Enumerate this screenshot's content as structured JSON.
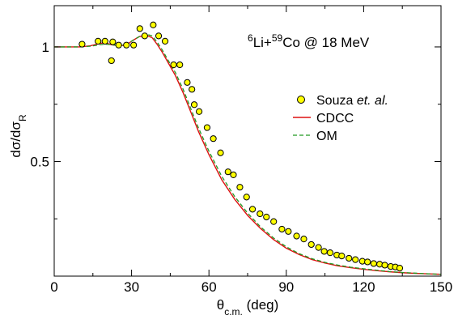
{
  "chart_data": {
    "type": "line",
    "title": "",
    "annotation": {
      "parts": [
        {
          "text": "6",
          "sup": true
        },
        {
          "text": "Li+",
          "sup": false
        },
        {
          "text": "59",
          "sup": true
        },
        {
          "text": "Co @ 18 MeV",
          "sup": false
        }
      ]
    },
    "xlabel": {
      "main": "θ",
      "sub": "c.m.",
      "rest": " (deg)"
    },
    "ylabel": {
      "main": "dσ/dσ",
      "sub": "R"
    },
    "xlim": [
      0,
      150
    ],
    "ylim": [
      0,
      1.18
    ],
    "xticks": [
      {
        "value": 0,
        "label": "0"
      },
      {
        "value": 30,
        "label": "30"
      },
      {
        "value": 60,
        "label": "60"
      },
      {
        "value": 90,
        "label": "90"
      },
      {
        "value": 120,
        "label": "120"
      },
      {
        "value": 150,
        "label": "150"
      }
    ],
    "yticks": [
      {
        "value": 0.5,
        "label": "0.5"
      },
      {
        "value": 1,
        "label": "1"
      }
    ],
    "grid": false,
    "legend_position": "right",
    "colors": {
      "data": "#ffff00",
      "cdcc": "#dd1111",
      "om": "#229922"
    },
    "series": [
      {
        "name": "Souza et. al.",
        "name_parts": [
          {
            "text": "Souza ",
            "italic": false
          },
          {
            "text": "et. al.",
            "italic": true
          }
        ],
        "kind": "points",
        "x": [
          10.8,
          17.0,
          19.7,
          22.2,
          22.7,
          25.0,
          28.0,
          30.8,
          33.2,
          35.1,
          38.4,
          40.5,
          43.0,
          46.3,
          48.7,
          51.6,
          53.4,
          54.3,
          56.2,
          59.3,
          61.7,
          64.5,
          67.4,
          69.5,
          72.0,
          74.6,
          76.9,
          79.8,
          82.3,
          85.1,
          88.3,
          90.8,
          94.0,
          96.8,
          99.7,
          102.5,
          104.7,
          107.0,
          109.6,
          111.5,
          114.3,
          116.8,
          119.5,
          121.5,
          123.9,
          126.2,
          128.2,
          130.5,
          132.3,
          134.0
        ],
        "y": [
          1.012,
          1.025,
          1.025,
          0.94,
          1.022,
          1.008,
          1.008,
          1.008,
          1.08,
          1.048,
          1.096,
          1.048,
          1.025,
          0.922,
          0.922,
          0.845,
          0.815,
          0.748,
          0.718,
          0.648,
          0.6,
          0.538,
          0.455,
          0.442,
          0.388,
          0.345,
          0.292,
          0.272,
          0.258,
          0.238,
          0.205,
          0.195,
          0.175,
          0.162,
          0.138,
          0.125,
          0.108,
          0.102,
          0.092,
          0.088,
          0.078,
          0.072,
          0.065,
          0.062,
          0.055,
          0.052,
          0.048,
          0.042,
          0.04,
          0.035
        ]
      },
      {
        "name": "CDCC",
        "kind": "line",
        "dash": "solid",
        "x": [
          0,
          5,
          10,
          14,
          18,
          20,
          22,
          25,
          28,
          30,
          33,
          36,
          38,
          40,
          42,
          44,
          47,
          50,
          53,
          56,
          60,
          65,
          70,
          75,
          80,
          85,
          90,
          95,
          100,
          105,
          110,
          115,
          120,
          125,
          130,
          135,
          140,
          145,
          150
        ],
        "y": [
          1.0,
          1.0,
          1.0,
          1.005,
          1.016,
          1.018,
          1.01,
          1.005,
          1.008,
          1.025,
          1.045,
          1.05,
          1.04,
          1.01,
          0.975,
          0.935,
          0.875,
          0.8,
          0.715,
          0.63,
          0.53,
          0.42,
          0.335,
          0.265,
          0.208,
          0.16,
          0.122,
          0.094,
          0.072,
          0.057,
          0.045,
          0.037,
          0.03,
          0.024,
          0.019,
          0.015,
          0.012,
          0.01,
          0.008
        ]
      },
      {
        "name": "OM",
        "kind": "line",
        "dash": "dashed",
        "x": [
          0,
          5,
          10,
          14,
          18,
          20,
          22,
          25,
          28,
          30,
          33,
          36,
          38,
          40,
          42,
          44,
          47,
          50,
          53,
          56,
          60,
          65,
          70,
          75,
          80,
          85,
          90,
          95,
          100,
          105,
          110,
          115,
          120,
          125,
          130,
          135,
          140,
          145,
          150
        ],
        "y": [
          1.0,
          1.0,
          1.0,
          1.003,
          1.01,
          1.012,
          1.01,
          1.006,
          1.01,
          1.025,
          1.045,
          1.055,
          1.048,
          1.02,
          0.985,
          0.945,
          0.888,
          0.815,
          0.73,
          0.645,
          0.545,
          0.435,
          0.347,
          0.275,
          0.215,
          0.167,
          0.128,
          0.098,
          0.076,
          0.06,
          0.048,
          0.039,
          0.032,
          0.026,
          0.02,
          0.016,
          0.013,
          0.01,
          0.008
        ]
      }
    ]
  }
}
